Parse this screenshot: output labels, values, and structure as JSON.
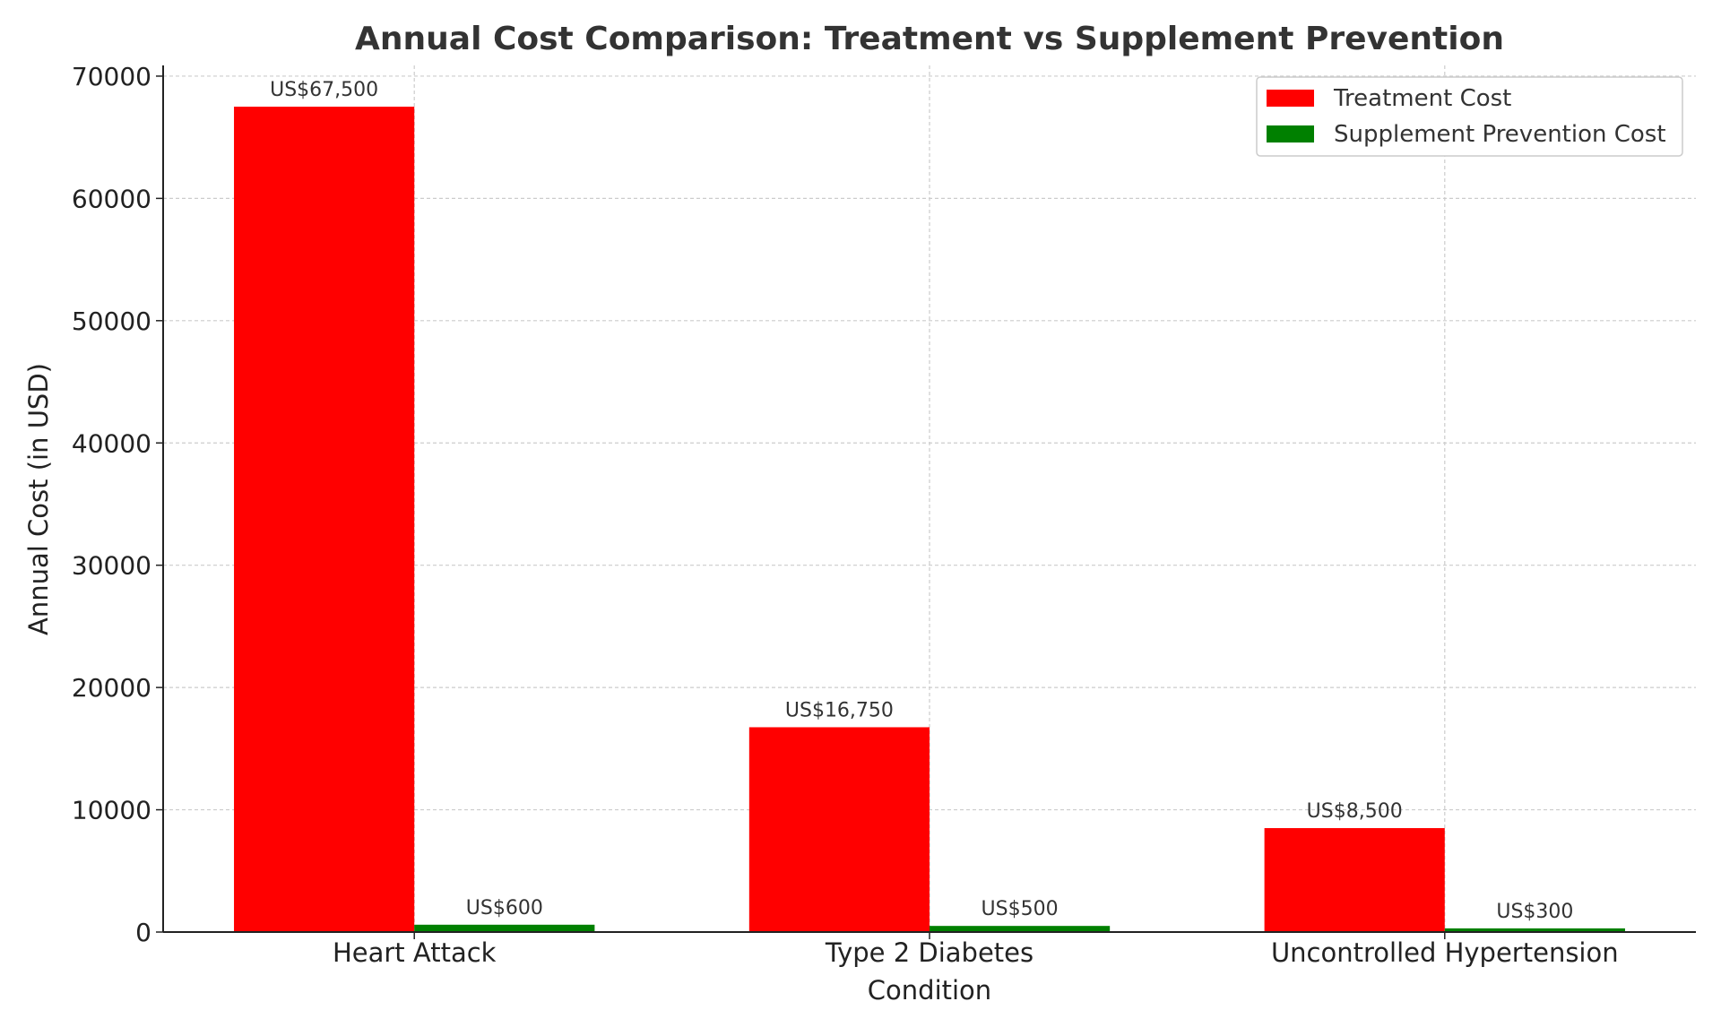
{
  "chart_data": {
    "type": "bar",
    "title": "Annual Cost Comparison: Treatment vs Supplement Prevention",
    "xlabel": "Condition",
    "ylabel": "Annual Cost (in USD)",
    "categories": [
      "Heart Attack",
      "Type 2 Diabetes",
      "Uncontrolled Hypertension"
    ],
    "series": [
      {
        "name": "Treatment Cost",
        "color": "#ff0000",
        "values": [
          67500,
          16750,
          8500
        ],
        "labels": [
          "US$67,500",
          "US$16,750",
          "US$8,500"
        ]
      },
      {
        "name": "Supplement Prevention Cost",
        "color": "#008000",
        "values": [
          600,
          500,
          300
        ],
        "labels": [
          "US$600",
          "US$500",
          "US$300"
        ]
      }
    ],
    "ylim": [
      0,
      70875
    ],
    "yticks": [
      0,
      10000,
      20000,
      30000,
      40000,
      50000,
      60000,
      70000
    ],
    "ytick_labels": [
      "0",
      "10000",
      "20000",
      "30000",
      "40000",
      "50000",
      "60000",
      "70000"
    ],
    "grid": true,
    "legend_position": "top-right"
  }
}
